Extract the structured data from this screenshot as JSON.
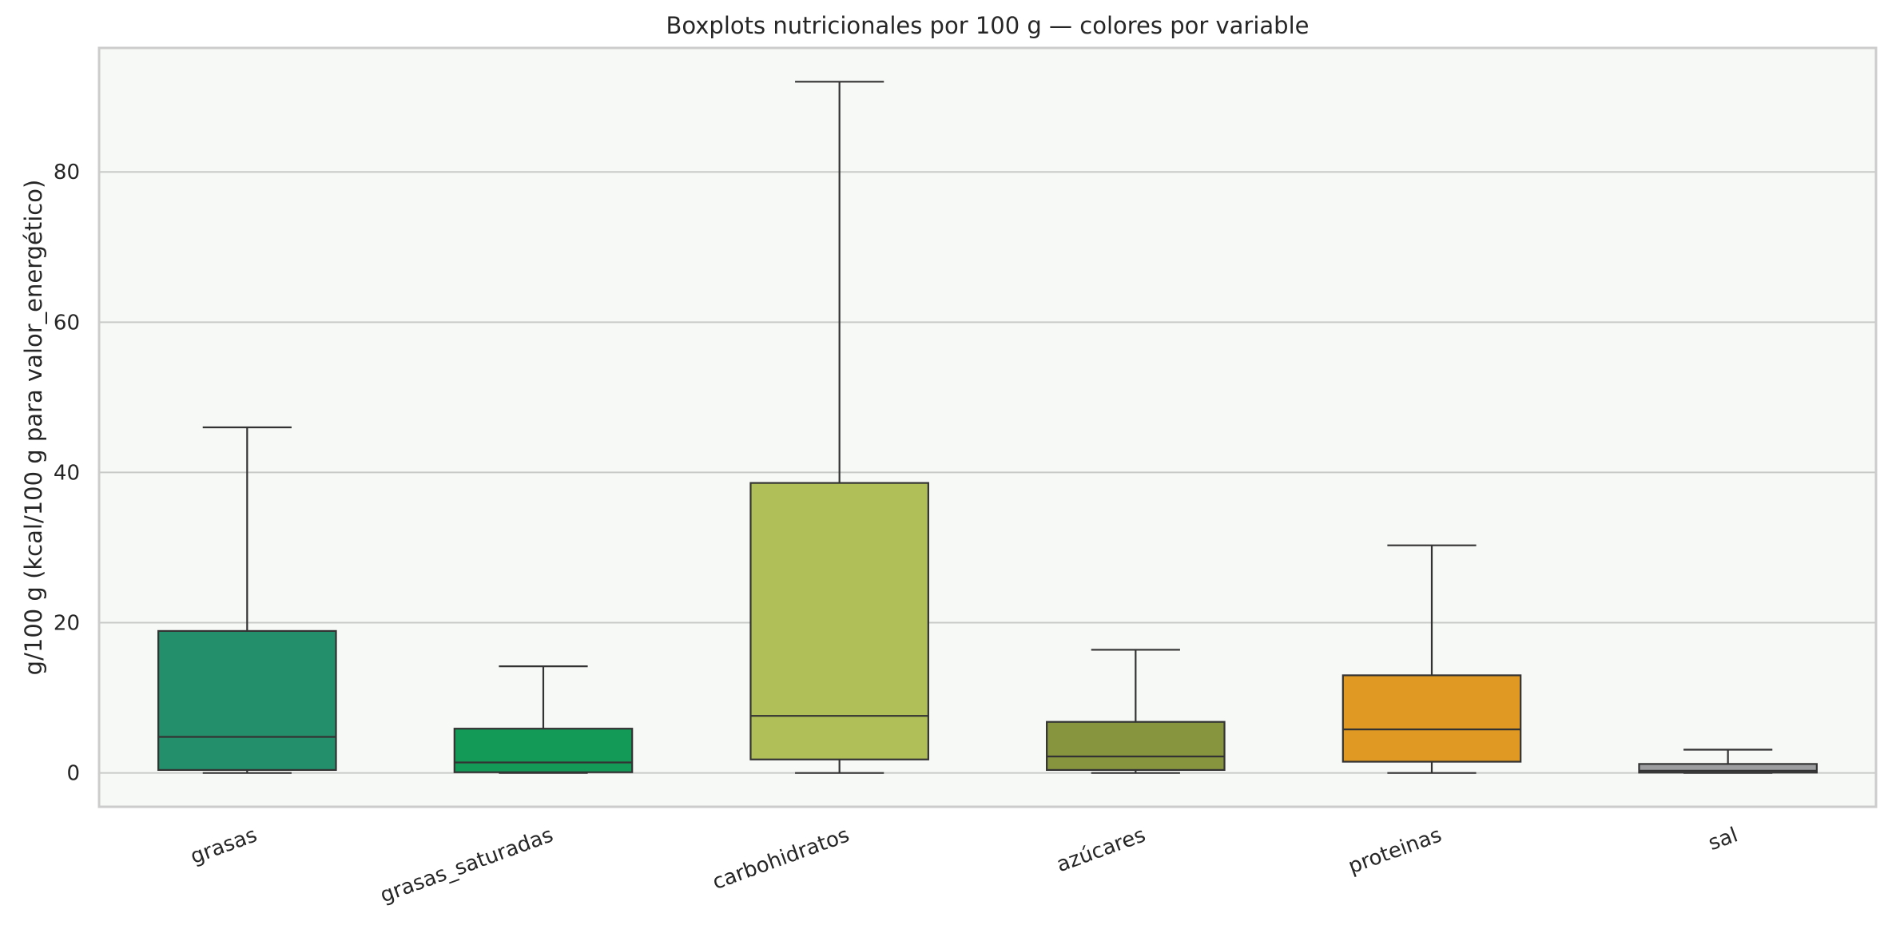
{
  "chart_data": {
    "type": "boxplot",
    "title": "Boxplots nutricionales por 100 g — colores por variable",
    "xlabel": "",
    "ylabel": "g/100 g (kcal/100 g para valor_energético)",
    "ylim": [
      -4.5,
      96.5
    ],
    "yticks": [
      0,
      20,
      40,
      60,
      80
    ],
    "grid": true,
    "background": "#f7f9f6",
    "categories": [
      "grasas",
      "grasas_saturadas",
      "carbohidratos",
      "azúcares",
      "proteinas",
      "sal"
    ],
    "boxes": [
      {
        "name": "grasas",
        "whisker_low": 0,
        "q1": 0.4,
        "median": 4.8,
        "q3": 18.9,
        "whisker_high": 46.0,
        "color": "#248f6b"
      },
      {
        "name": "grasas_saturadas",
        "whisker_low": 0,
        "q1": 0.1,
        "median": 1.4,
        "q3": 5.9,
        "whisker_high": 14.2,
        "color": "#139a57"
      },
      {
        "name": "carbohidratos",
        "whisker_low": 0,
        "q1": 1.8,
        "median": 7.6,
        "q3": 38.6,
        "whisker_high": 92.0,
        "color": "#b0bf58"
      },
      {
        "name": "azúcares",
        "whisker_low": 0,
        "q1": 0.4,
        "median": 2.2,
        "q3": 6.8,
        "whisker_high": 16.4,
        "color": "#87963e"
      },
      {
        "name": "proteinas",
        "whisker_low": 0,
        "q1": 1.5,
        "median": 5.8,
        "q3": 13.0,
        "whisker_high": 30.3,
        "color": "#e09922"
      },
      {
        "name": "sal",
        "whisker_low": 0,
        "q1": 0.05,
        "median": 0.3,
        "q3": 1.2,
        "whisker_high": 3.1,
        "color": "#9c9ea0"
      }
    ]
  }
}
